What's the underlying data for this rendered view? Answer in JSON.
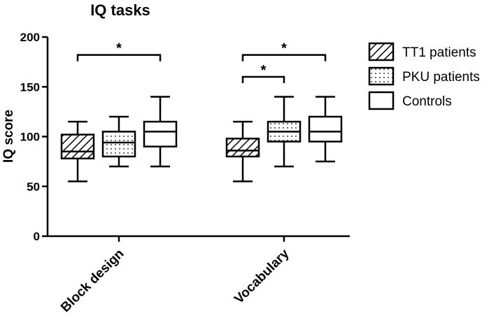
{
  "chart_data": {
    "type": "box",
    "title": "IQ tasks",
    "ylabel": "IQ score",
    "xlabel": "",
    "ylim": [
      0,
      200
    ],
    "yticks": [
      0,
      50,
      100,
      150,
      200
    ],
    "categories": [
      "Block design",
      "Vocabulary"
    ],
    "series": [
      {
        "name": "TT1 patients",
        "pattern": "hatch",
        "boxes": [
          {
            "min": 55,
            "q1": 78,
            "median": 85,
            "q3": 102,
            "max": 115
          },
          {
            "min": 55,
            "q1": 80,
            "median": 86,
            "q3": 98,
            "max": 115
          }
        ]
      },
      {
        "name": "PKU patients",
        "pattern": "dots",
        "boxes": [
          {
            "min": 70,
            "q1": 80,
            "median": 94,
            "q3": 105,
            "max": 120
          },
          {
            "min": 70,
            "q1": 95,
            "median": 105,
            "q3": 115,
            "max": 140
          }
        ]
      },
      {
        "name": "Controls",
        "pattern": "none",
        "boxes": [
          {
            "min": 70,
            "q1": 90,
            "median": 105,
            "q3": 115,
            "max": 140
          },
          {
            "min": 75,
            "q1": 95,
            "median": 105,
            "q3": 120,
            "max": 140
          }
        ]
      }
    ],
    "significance": [
      {
        "category": 0,
        "from": 0,
        "to": 2,
        "y": 182,
        "label": "*"
      },
      {
        "category": 1,
        "from": 0,
        "to": 1,
        "y": 160,
        "label": "*"
      },
      {
        "category": 1,
        "from": 0,
        "to": 2,
        "y": 182,
        "label": "*"
      }
    ],
    "legend": "right",
    "grid": false
  }
}
